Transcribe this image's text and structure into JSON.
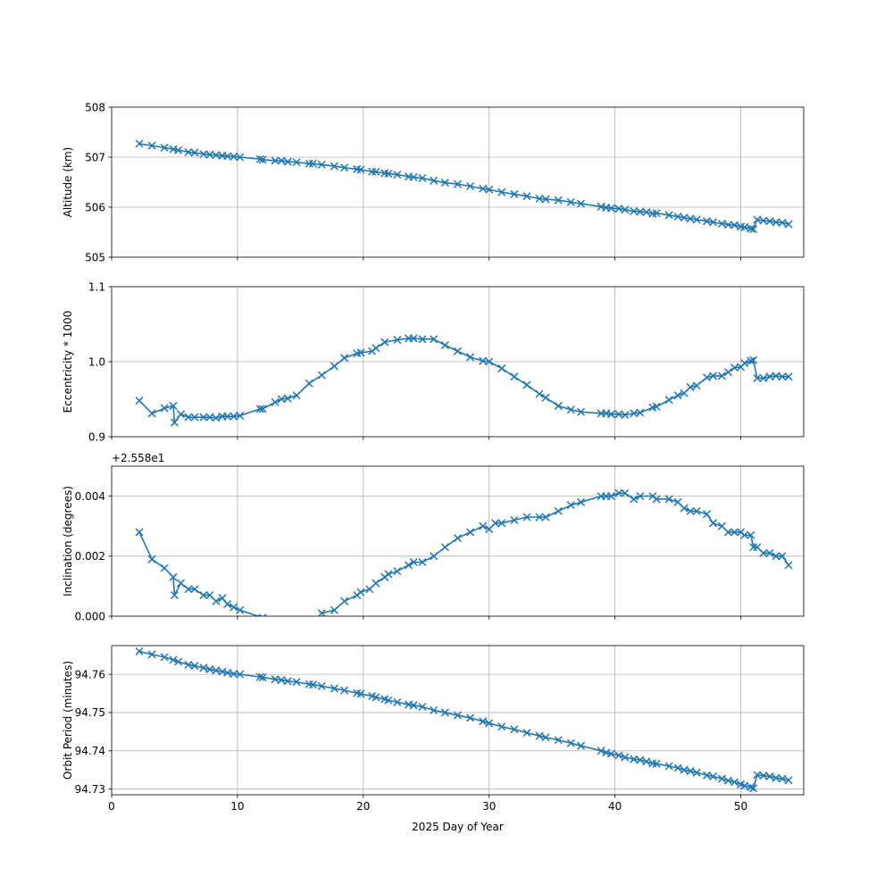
{
  "figure": {
    "xlabel": "2025 Day of Year"
  },
  "chart_data": [
    {
      "type": "line",
      "ylabel": "Altitude (km)",
      "xlim": [
        0,
        55
      ],
      "ylim": [
        505,
        508
      ],
      "xticks": [
        0,
        10,
        20,
        30,
        40,
        50
      ],
      "yticks": [
        505,
        506,
        507,
        508
      ],
      "ytick_labels": [
        "505",
        "506",
        "507",
        "508"
      ],
      "offset_label": "",
      "grid": true,
      "color": "#1f77b4",
      "marker": "x",
      "series": [
        {
          "x": [
            2.2,
            3.2,
            4.2,
            4.9,
            5.3,
            6.1,
            6.6,
            7.3,
            7.8,
            8.3,
            8.8,
            9.2,
            9.7,
            10.2,
            11.8,
            12.0,
            13.0,
            13.5,
            14.0,
            14.7,
            15.7,
            16.0,
            16.7,
            17.7,
            18.5,
            19.5,
            19.8,
            20.7,
            21.0,
            21.7,
            22.0,
            22.7,
            23.6,
            24.0,
            24.7,
            25.6,
            26.5,
            27.5,
            28.5,
            29.5,
            30.0,
            31.0,
            32.0,
            33.0,
            34.0,
            34.5,
            35.5,
            36.5,
            37.3,
            38.9,
            39.3,
            39.7,
            40.3,
            40.8,
            41.5,
            42.0,
            42.5,
            43.0,
            43.3,
            44.3,
            45.0,
            45.5,
            46.0,
            46.5,
            47.3,
            47.8,
            48.5,
            49.0,
            49.5,
            50.0,
            50.3,
            50.8,
            51.0,
            51.3,
            51.8,
            52.3,
            52.8,
            53.3,
            53.8
          ],
          "y": [
            507.27,
            507.23,
            507.19,
            507.16,
            507.14,
            507.1,
            507.09,
            507.06,
            507.05,
            507.04,
            507.03,
            507.02,
            507.01,
            507.0,
            506.96,
            506.95,
            506.93,
            506.93,
            506.91,
            506.9,
            506.87,
            506.87,
            506.85,
            506.82,
            506.79,
            506.76,
            506.75,
            506.71,
            506.71,
            506.68,
            506.67,
            506.65,
            506.61,
            506.6,
            506.58,
            506.53,
            506.49,
            506.46,
            506.42,
            506.37,
            506.35,
            506.3,
            506.26,
            506.22,
            506.17,
            506.16,
            506.14,
            506.1,
            506.07,
            506.01,
            505.99,
            505.98,
            505.97,
            505.95,
            505.92,
            505.91,
            505.9,
            505.87,
            505.88,
            505.84,
            505.81,
            505.79,
            505.77,
            505.75,
            505.72,
            505.7,
            505.67,
            505.65,
            505.64,
            505.61,
            505.6,
            505.57,
            505.56,
            505.75,
            505.73,
            505.72,
            505.7,
            505.69,
            505.66
          ]
        }
      ]
    },
    {
      "type": "line",
      "ylabel": "Eccentricity * 1000",
      "xlim": [
        0,
        55
      ],
      "ylim": [
        0.9,
        1.1
      ],
      "xticks": [
        0,
        10,
        20,
        30,
        40,
        50
      ],
      "yticks": [
        0.9,
        1.0,
        1.1
      ],
      "ytick_labels": [
        "0.9",
        "1.0",
        "1.1"
      ],
      "offset_label": "",
      "grid": true,
      "color": "#1f77b4",
      "marker": "x",
      "series": [
        {
          "x": [
            2.2,
            3.2,
            4.2,
            4.9,
            5.0,
            5.5,
            6.1,
            6.6,
            7.3,
            7.8,
            8.3,
            8.8,
            9.2,
            9.7,
            10.2,
            11.8,
            12.0,
            13.0,
            13.5,
            14.0,
            14.7,
            15.7,
            16.7,
            17.7,
            18.5,
            19.5,
            19.8,
            20.7,
            21.0,
            21.7,
            22.7,
            23.6,
            24.0,
            24.7,
            25.6,
            26.5,
            27.5,
            28.5,
            29.5,
            30.0,
            31.0,
            32.0,
            33.0,
            34.0,
            34.5,
            35.5,
            36.5,
            37.3,
            38.9,
            39.3,
            39.7,
            40.3,
            40.8,
            41.5,
            42.0,
            43.0,
            43.3,
            44.3,
            45.0,
            45.5,
            46.0,
            46.5,
            47.3,
            47.8,
            48.5,
            49.0,
            49.5,
            50.0,
            50.3,
            50.8,
            51.0,
            51.3,
            51.8,
            52.3,
            52.8,
            53.3,
            53.8
          ],
          "y": [
            0.948,
            0.931,
            0.938,
            0.941,
            0.919,
            0.93,
            0.926,
            0.926,
            0.926,
            0.926,
            0.925,
            0.927,
            0.927,
            0.927,
            0.928,
            0.937,
            0.937,
            0.946,
            0.95,
            0.951,
            0.955,
            0.971,
            0.982,
            0.994,
            1.005,
            1.011,
            1.012,
            1.014,
            1.018,
            1.026,
            1.029,
            1.031,
            1.031,
            1.03,
            1.03,
            1.022,
            1.014,
            1.006,
            1.001,
            1.0,
            0.991,
            0.98,
            0.969,
            0.957,
            0.952,
            0.941,
            0.936,
            0.933,
            0.931,
            0.931,
            0.93,
            0.93,
            0.929,
            0.931,
            0.932,
            0.939,
            0.94,
            0.949,
            0.955,
            0.958,
            0.966,
            0.968,
            0.979,
            0.981,
            0.981,
            0.986,
            0.992,
            0.993,
            0.998,
            1.001,
            1.002,
            0.978,
            0.978,
            0.98,
            0.981,
            0.98,
            0.98
          ]
        }
      ]
    },
    {
      "type": "line",
      "ylabel": "Inclination (degrees)",
      "xlim": [
        0,
        55
      ],
      "ylim": [
        0.0,
        0.005
      ],
      "xticks": [
        0,
        10,
        20,
        30,
        40,
        50
      ],
      "yticks": [
        0.0,
        0.002,
        0.004
      ],
      "ytick_labels": [
        "0.000",
        "0.002",
        "0.004"
      ],
      "offset_label": "+2.558e1",
      "grid": true,
      "color": "#1f77b4",
      "marker": "x",
      "series": [
        {
          "x": [
            2.2,
            3.2,
            4.2,
            4.9,
            5.0,
            5.5,
            6.1,
            6.6,
            7.3,
            7.8,
            8.3,
            8.8,
            9.2,
            9.7,
            10.2,
            12.0
          ],
          "y": [
            0.0028,
            0.0019,
            0.0016,
            0.0013,
            0.0007,
            0.0011,
            0.0009,
            0.0009,
            0.0007,
            0.0007,
            0.0005,
            0.0006,
            0.0004,
            0.0003,
            0.0002,
            -5e-05
          ]
        },
        {
          "x": [
            16.7,
            17.7,
            18.5,
            19.5,
            19.8,
            20.5,
            21.0,
            21.7,
            22.0,
            22.7,
            23.6,
            24.0,
            24.7,
            25.6,
            26.5,
            27.5,
            28.5,
            29.5,
            30.0,
            30.5,
            31.0,
            32.0,
            33.0,
            34.0,
            34.5,
            35.5,
            36.5,
            37.3,
            38.9,
            39.3,
            39.7,
            40.3,
            40.8,
            41.5,
            42.0,
            43.0,
            43.3,
            44.3,
            45.0,
            45.5,
            46.0,
            46.5,
            47.3,
            47.8,
            48.5,
            49.0,
            49.5,
            50.0,
            50.3,
            50.8,
            51.0,
            51.3,
            51.8,
            52.3,
            52.8,
            53.3,
            53.8
          ],
          "y": [
            0.0001,
            0.0002,
            0.0005,
            0.0007,
            0.0008,
            0.0009,
            0.0011,
            0.0013,
            0.0014,
            0.0015,
            0.0017,
            0.0018,
            0.0018,
            0.002,
            0.0023,
            0.0026,
            0.0028,
            0.003,
            0.0029,
            0.0031,
            0.0031,
            0.0032,
            0.0033,
            0.0033,
            0.0033,
            0.0035,
            0.0037,
            0.0038,
            0.004,
            0.004,
            0.004,
            0.0041,
            0.0041,
            0.0039,
            0.004,
            0.004,
            0.0039,
            0.0039,
            0.0038,
            0.0036,
            0.0035,
            0.0035,
            0.0034,
            0.0031,
            0.003,
            0.0028,
            0.0028,
            0.0028,
            0.0027,
            0.0027,
            0.0023,
            0.0023,
            0.0021,
            0.0021,
            0.002,
            0.002,
            0.0017
          ]
        }
      ]
    },
    {
      "type": "line",
      "ylabel": "Orbit Period (minutes)",
      "xlim": [
        0,
        55
      ],
      "ylim": [
        94.7285,
        94.7675
      ],
      "xticks": [
        0,
        10,
        20,
        30,
        40,
        50
      ],
      "yticks": [
        94.73,
        94.74,
        94.75,
        94.76
      ],
      "ytick_labels": [
        "94.73",
        "94.74",
        "94.75",
        "94.76"
      ],
      "xtick_labels": [
        "0",
        "10",
        "20",
        "30",
        "40",
        "50"
      ],
      "offset_label": "",
      "grid": true,
      "color": "#1f77b4",
      "marker": "x",
      "series": [
        {
          "x": [
            2.2,
            3.2,
            4.2,
            4.9,
            5.3,
            6.1,
            6.6,
            7.3,
            7.8,
            8.3,
            8.8,
            9.2,
            9.7,
            10.2,
            11.8,
            12.0,
            13.0,
            13.5,
            14.0,
            14.7,
            15.7,
            16.0,
            16.7,
            17.7,
            18.5,
            19.5,
            19.8,
            20.7,
            21.0,
            21.7,
            22.0,
            22.7,
            23.6,
            24.0,
            24.7,
            25.6,
            26.5,
            27.5,
            28.5,
            29.5,
            30.0,
            31.0,
            32.0,
            33.0,
            34.0,
            34.5,
            35.5,
            36.5,
            37.3,
            38.9,
            39.3,
            39.7,
            40.3,
            40.8,
            41.5,
            42.0,
            42.5,
            43.0,
            43.3,
            44.3,
            45.0,
            45.5,
            46.0,
            46.5,
            47.3,
            47.8,
            48.5,
            49.0,
            49.5,
            50.0,
            50.3,
            50.8,
            51.0,
            51.3,
            51.8,
            52.3,
            52.8,
            53.3,
            53.8
          ],
          "y": [
            94.766,
            94.7652,
            94.7645,
            94.7638,
            94.7633,
            94.7625,
            94.7622,
            94.7617,
            94.7613,
            94.761,
            94.7607,
            94.7604,
            94.7601,
            94.76,
            94.7593,
            94.7592,
            94.7587,
            94.7585,
            94.7582,
            94.758,
            94.7574,
            94.7573,
            94.7569,
            94.7563,
            94.7558,
            94.7551,
            94.7549,
            94.7543,
            94.754,
            94.7535,
            94.7532,
            94.7527,
            94.7521,
            94.7519,
            94.7515,
            94.7506,
            94.75,
            94.7493,
            94.7486,
            94.7477,
            94.7472,
            94.7463,
            94.7456,
            94.7447,
            94.7439,
            94.7435,
            94.7428,
            94.742,
            94.7413,
            94.74,
            94.7395,
            94.7392,
            94.7388,
            94.7383,
            94.7378,
            94.7376,
            94.7372,
            94.7367,
            94.7366,
            94.736,
            94.7355,
            94.735,
            94.7347,
            94.7343,
            94.7336,
            94.7333,
            94.7327,
            94.7322,
            94.7318,
            94.7312,
            94.7309,
            94.7305,
            94.7302,
            94.7337,
            94.7335,
            94.7333,
            94.7329,
            94.7327,
            94.7323
          ]
        }
      ]
    }
  ]
}
